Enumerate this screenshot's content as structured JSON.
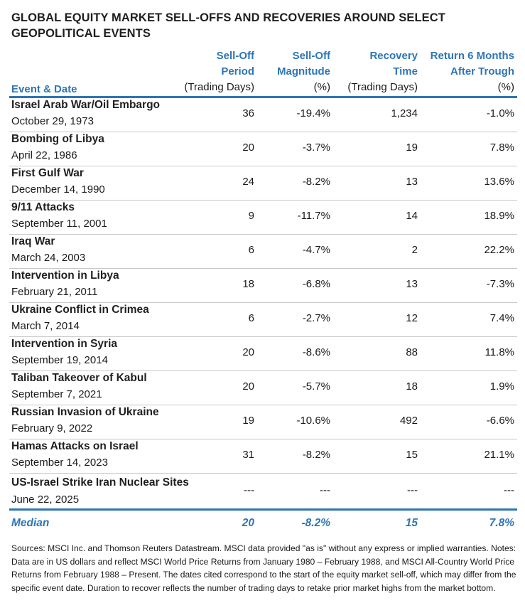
{
  "title": "GLOBAL EQUITY MARKET SELL-OFFS AND RECOVERIES AROUND SELECT GEOPOLITICAL EVENTS",
  "headers": {
    "event": {
      "label": "Event & Date"
    },
    "selloff_period": {
      "line1": "Sell-Off",
      "line2": "Period",
      "unit": "(Trading Days)"
    },
    "selloff_magnitude": {
      "line1": "Sell-Off",
      "line2": "Magnitude",
      "unit": "(%)"
    },
    "recovery_time": {
      "line1": "Recovery",
      "line2": "Time",
      "unit": "(Trading Days)"
    },
    "return_6m": {
      "line1": "Return 6 Months",
      "line2": "After Trough",
      "unit": "(%)"
    }
  },
  "rows": [
    {
      "event": "Israel Arab War/Oil Embargo",
      "date": "October 29, 1973",
      "period": "36",
      "magnitude": "-19.4%",
      "recovery": "1,234",
      "return": "-1.0%"
    },
    {
      "event": "Bombing of Libya",
      "date": "April 22, 1986",
      "period": "20",
      "magnitude": "-3.7%",
      "recovery": "19",
      "return": "7.8%"
    },
    {
      "event": "First Gulf War",
      "date": "December 14, 1990",
      "period": "24",
      "magnitude": "-8.2%",
      "recovery": "13",
      "return": "13.6%"
    },
    {
      "event": "9/11 Attacks",
      "date": "September 11, 2001",
      "period": "9",
      "magnitude": "-11.7%",
      "recovery": "14",
      "return": "18.9%"
    },
    {
      "event": "Iraq War",
      "date": "March 24, 2003",
      "period": "6",
      "magnitude": "-4.7%",
      "recovery": "2",
      "return": "22.2%"
    },
    {
      "event": "Intervention in Libya",
      "date": "February 21, 2011",
      "period": "18",
      "magnitude": "-6.8%",
      "recovery": "13",
      "return": "-7.3%"
    },
    {
      "event": "Ukraine Conflict in Crimea",
      "date": "March 7, 2014",
      "period": "6",
      "magnitude": "-2.7%",
      "recovery": "12",
      "return": "7.4%"
    },
    {
      "event": "Intervention in Syria",
      "date": "September 19, 2014",
      "period": "20",
      "magnitude": "-8.6%",
      "recovery": "88",
      "return": "11.8%"
    },
    {
      "event": "Taliban Takeover of Kabul",
      "date": "September 7, 2021",
      "period": "20",
      "magnitude": "-5.7%",
      "recovery": "18",
      "return": "1.9%"
    },
    {
      "event": "Russian Invasion of Ukraine",
      "date": "February 9, 2022",
      "period": "19",
      "magnitude": "-10.6%",
      "recovery": "492",
      "return": "-6.6%"
    },
    {
      "event": "Hamas Attacks on Israel",
      "date": "September 14, 2023",
      "period": "31",
      "magnitude": "-8.2%",
      "recovery": "15",
      "return": "21.1%"
    },
    {
      "event": "US-Israel Strike Iran Nuclear Sites",
      "date": "June 22, 2025",
      "period": "---",
      "magnitude": "---",
      "recovery": "---",
      "return": "---"
    }
  ],
  "median": {
    "label": "Median",
    "period": "20",
    "magnitude": "-8.2%",
    "recovery": "15",
    "return": "7.8%"
  },
  "notes": "Sources: MSCI Inc. and Thomson Reuters Datastream. MSCI data provided \"as is\" without any express or implied warranties. Notes: Data are in US dollars and reflect MSCI World Price Returns from January 1980 – February 1988, and MSCI All-Country World Price Returns from February 1988 – Present. The dates cited correspond to the start of the equity market sell-off, which may differ from the specific event date. Duration to recover reflects the number of trading days to retake prior market highs from the market bottom.",
  "colors": {
    "accent": "#2e75b6",
    "row_divider": "#c8c8c8"
  }
}
